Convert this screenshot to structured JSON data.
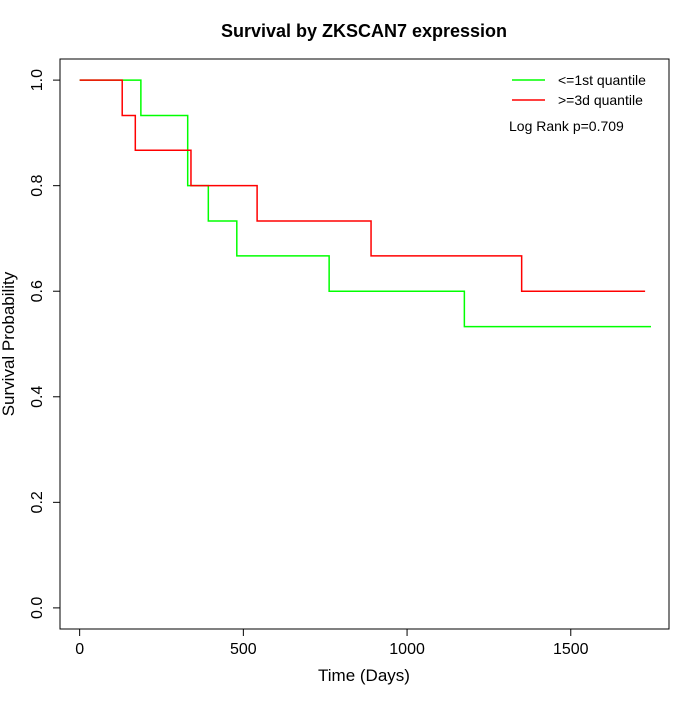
{
  "chart_data": {
    "type": "line",
    "title": "Survival by ZKSCAN7 expression",
    "xlabel": "Time (Days)",
    "ylabel": "Survival Probability",
    "xlim": [
      -60,
      1800
    ],
    "ylim": [
      -0.04,
      1.04
    ],
    "x_ticks": [
      0,
      500,
      1000,
      1500
    ],
    "y_ticks": [
      0.0,
      0.2,
      0.4,
      0.6,
      0.8,
      1.0
    ],
    "x_tick_labels": [
      "0",
      "500",
      "1000",
      "1500"
    ],
    "y_tick_labels": [
      "0.0",
      "0.2",
      "0.4",
      "0.6",
      "0.8",
      "1.0"
    ],
    "grid": false,
    "legend_position": "top-right",
    "annotation": "Log Rank p=0.709",
    "series": [
      {
        "name": "<=1st quantile",
        "color": "#00ff00",
        "step": true,
        "points": [
          [
            0,
            1.0
          ],
          [
            187,
            0.933
          ],
          [
            330,
            0.8
          ],
          [
            393,
            0.733
          ],
          [
            480,
            0.667
          ],
          [
            762,
            0.6
          ],
          [
            1175,
            0.533
          ],
          [
            1745,
            0.533
          ]
        ]
      },
      {
        "name": ">=3d quantile",
        "color": "#ff0000",
        "step": true,
        "points": [
          [
            0,
            1.0
          ],
          [
            130,
            0.933
          ],
          [
            170,
            0.867
          ],
          [
            340,
            0.8
          ],
          [
            542,
            0.733
          ],
          [
            890,
            0.667
          ],
          [
            1350,
            0.6
          ],
          [
            1727,
            0.6
          ]
        ]
      }
    ]
  }
}
